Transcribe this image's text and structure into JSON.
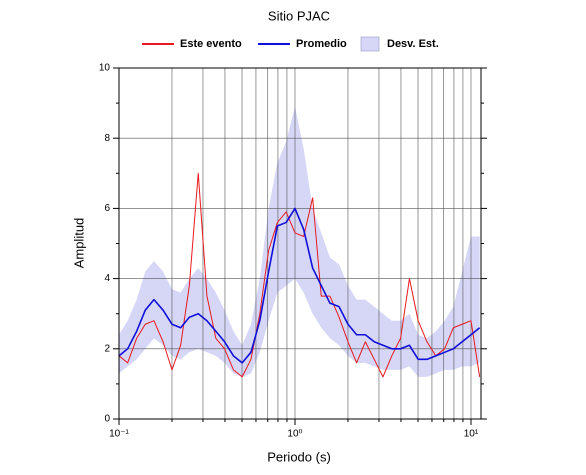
{
  "chart_data": {
    "type": "line",
    "title": "Sitio PJAC",
    "xlabel": "Periodo (s)",
    "ylabel": "Amplitud",
    "xscale": "log",
    "grid": true,
    "legend": "top",
    "xlim": [
      0.1,
      11.4
    ],
    "ylim": [
      0,
      10
    ],
    "xticks": [
      {
        "value": 0.1,
        "label": "10⁻¹"
      },
      {
        "value": 1,
        "label": "10⁰"
      },
      {
        "value": 10,
        "label": "10¹"
      }
    ],
    "xminorticks": [
      0.2,
      0.3,
      0.4,
      0.5,
      0.6,
      0.7,
      0.8,
      0.9,
      2,
      3,
      4,
      5,
      6,
      7,
      8,
      9
    ],
    "yticks": [
      0,
      2,
      4,
      6,
      8,
      10
    ],
    "yminorticks": [
      1,
      3,
      5,
      7,
      9
    ],
    "x": [
      0.1,
      0.112,
      0.126,
      0.141,
      0.158,
      0.178,
      0.2,
      0.224,
      0.251,
      0.282,
      0.316,
      0.355,
      0.398,
      0.447,
      0.501,
      0.562,
      0.631,
      0.708,
      0.794,
      0.891,
      1,
      1.12,
      1.26,
      1.41,
      1.58,
      1.78,
      2,
      2.24,
      2.51,
      2.82,
      3.16,
      3.55,
      3.98,
      4.47,
      5.01,
      5.62,
      6.31,
      7.08,
      7.94,
      8.91,
      10,
      11.2
    ],
    "series": [
      {
        "name": "Este evento",
        "color": "#e8191e",
        "width": 1,
        "values": [
          1.8,
          1.6,
          2.3,
          2.7,
          2.8,
          2.2,
          1.4,
          2.1,
          3.8,
          7.0,
          3.5,
          2.3,
          2.0,
          1.4,
          1.2,
          1.7,
          3.0,
          4.8,
          5.6,
          5.9,
          5.3,
          5.2,
          6.3,
          3.5,
          3.5,
          2.9,
          2.2,
          1.6,
          2.2,
          1.7,
          1.2,
          1.8,
          2.3,
          4.0,
          2.8,
          2.2,
          1.8,
          2.0,
          2.6,
          2.7,
          2.8,
          1.2
        ]
      },
      {
        "name": "Promedio",
        "color": "#1010d8",
        "width": 1.6,
        "values": [
          1.8,
          2.0,
          2.5,
          3.1,
          3.4,
          3.1,
          2.7,
          2.6,
          2.9,
          3.0,
          2.8,
          2.5,
          2.2,
          1.8,
          1.6,
          1.9,
          2.8,
          4.2,
          5.5,
          5.6,
          6.0,
          5.4,
          4.3,
          3.8,
          3.3,
          3.2,
          2.7,
          2.4,
          2.4,
          2.2,
          2.1,
          2.0,
          2.0,
          2.1,
          1.7,
          1.7,
          1.8,
          1.9,
          2.0,
          2.2,
          2.4,
          2.6
        ]
      }
    ],
    "band": {
      "name": "Desv. Est.",
      "color": "#d6d6f7",
      "lower": [
        1.3,
        1.5,
        1.7,
        2.0,
        2.3,
        2.1,
        1.8,
        1.7,
        1.9,
        2.0,
        1.9,
        1.8,
        1.6,
        1.3,
        1.2,
        1.3,
        1.9,
        2.8,
        3.6,
        3.8,
        4.0,
        3.6,
        3.0,
        2.6,
        2.3,
        2.1,
        1.8,
        1.6,
        1.6,
        1.5,
        1.4,
        1.4,
        1.4,
        1.5,
        1.2,
        1.2,
        1.3,
        1.4,
        1.4,
        1.5,
        1.5,
        1.6
      ],
      "upper": [
        2.4,
        2.8,
        3.4,
        4.2,
        4.5,
        4.2,
        3.7,
        3.6,
        4.0,
        4.3,
        4.0,
        3.6,
        3.1,
        2.5,
        2.1,
        2.7,
        4.0,
        6.0,
        7.3,
        7.9,
        8.9,
        7.7,
        6.0,
        5.3,
        4.6,
        4.4,
        3.8,
        3.4,
        3.4,
        3.2,
        3.0,
        2.8,
        2.8,
        3.0,
        2.4,
        2.3,
        2.5,
        2.8,
        3.2,
        4.2,
        5.2,
        5.2
      ]
    }
  }
}
